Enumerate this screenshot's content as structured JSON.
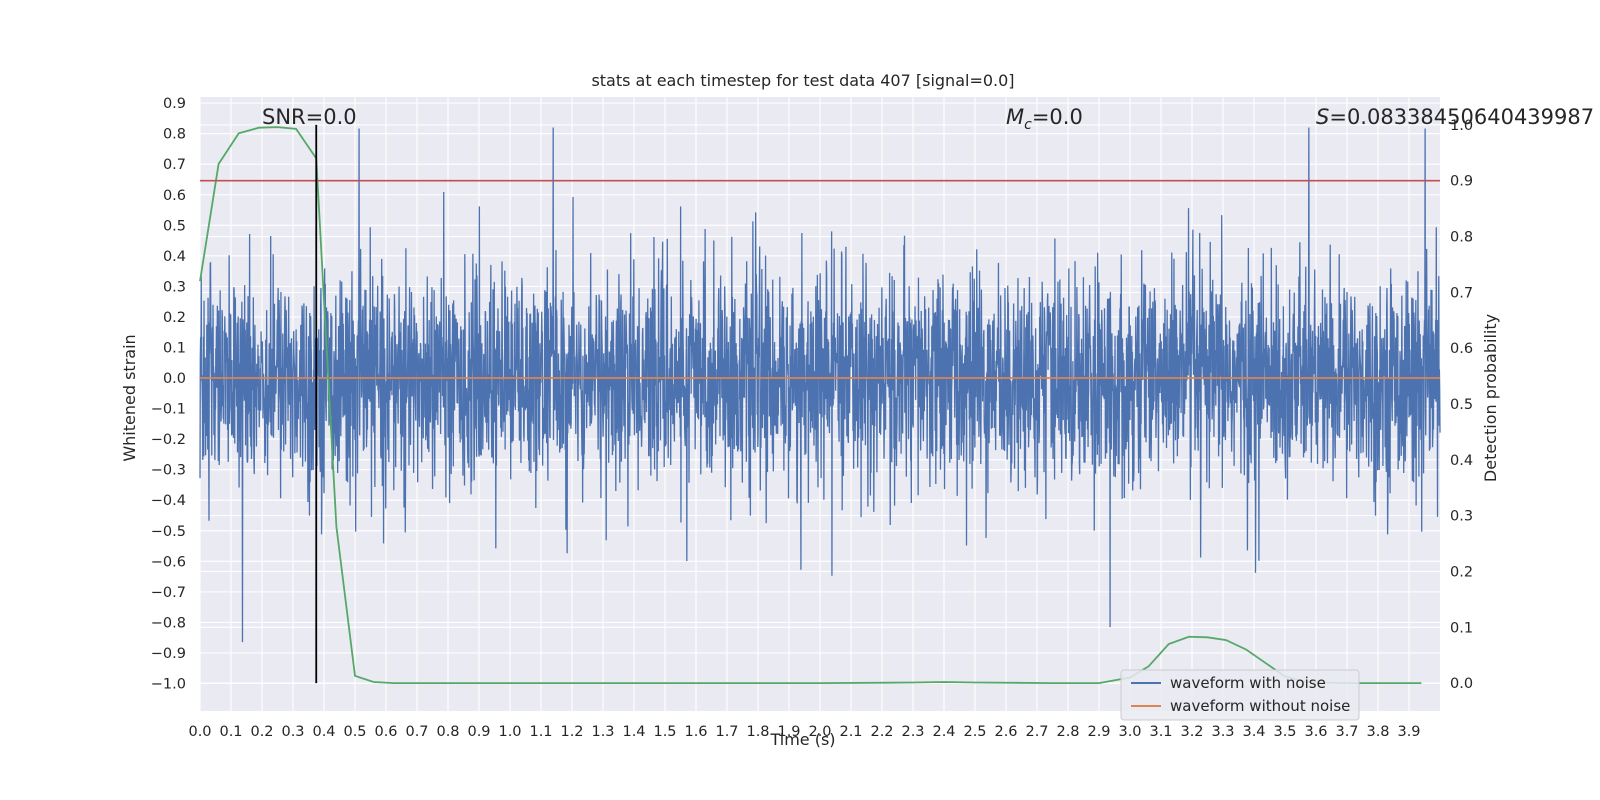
{
  "chart_data": {
    "type": "line",
    "title": "stats at each timestep for test data 407 [signal=0.0]",
    "xlabel": "Time (s)",
    "ylabel": "Whitened strain",
    "ylabel_right": "Detection probability",
    "xlim": [
      0.0,
      4.0
    ],
    "ylim": [
      -1.09,
      0.92
    ],
    "ylim_right": [
      -0.05,
      1.05
    ],
    "x_ticks": [
      "0.0",
      "0.1",
      "0.2",
      "0.3",
      "0.4",
      "0.5",
      "0.6",
      "0.7",
      "0.8",
      "0.9",
      "1.0",
      "1.1",
      "1.2",
      "1.3",
      "1.4",
      "1.5",
      "1.6",
      "1.7",
      "1.8",
      "1.9",
      "2.0",
      "2.1",
      "2.2",
      "2.3",
      "2.4",
      "2.5",
      "2.6",
      "2.7",
      "2.8",
      "2.9",
      "3.0",
      "3.1",
      "3.2",
      "3.3",
      "3.4",
      "3.5",
      "3.6",
      "3.7",
      "3.8",
      "3.9"
    ],
    "y_ticks": [
      "0.9",
      "0.8",
      "0.7",
      "0.6",
      "0.5",
      "0.4",
      "0.3",
      "0.2",
      "0.1",
      "0.0",
      "−0.1",
      "−0.2",
      "−0.3",
      "−0.4",
      "−0.5",
      "−0.6",
      "−0.7",
      "−0.8",
      "−0.9",
      "−1.0"
    ],
    "y_ticks_right": [
      "1.0",
      "0.9",
      "0.8",
      "0.7",
      "0.6",
      "0.5",
      "0.4",
      "0.3",
      "0.2",
      "0.1",
      "0.0"
    ],
    "annotations": {
      "snr": "SNR=0.0",
      "mc_symbol": "M",
      "mc_sub": "c",
      "mc_value": "=0.0",
      "s_symbol": "S",
      "s_value": "=0.08338450640439987"
    },
    "legend": {
      "placement": "lower-right",
      "entries": [
        "waveform with noise",
        "waveform without noise"
      ]
    },
    "grid": true,
    "series": [
      {
        "name": "waveform with noise",
        "kind": "noise",
        "n_samples": 4000,
        "typical_amplitude": [
          -0.3,
          0.3
        ],
        "peak_max": 0.82,
        "peak_min": -1.0,
        "color": "#4c72b0"
      },
      {
        "name": "waveform without noise",
        "x": [
          0.0,
          4.0
        ],
        "y": [
          0.0,
          0.0
        ],
        "color": "#dd8452"
      },
      {
        "axis": "right",
        "x": [
          0.0,
          0.06,
          0.125,
          0.19,
          0.25,
          0.31,
          0.375,
          0.44,
          0.5,
          0.56,
          0.625,
          0.69,
          0.75,
          0.81,
          0.875,
          0.94,
          1.0,
          1.5,
          2.0,
          2.3,
          2.4,
          2.5,
          2.75,
          2.9,
          3.0,
          3.06,
          3.125,
          3.19,
          3.25,
          3.31,
          3.375,
          3.44,
          3.5,
          3.56,
          3.625,
          3.69,
          3.75,
          3.81,
          3.875,
          3.94
        ],
        "y": [
          0.72,
          0.93,
          0.985,
          0.995,
          0.996,
          0.993,
          0.94,
          0.28,
          0.013,
          0.002,
          0.0,
          0.0,
          0.0,
          0.0,
          0.0,
          0.0,
          0.0,
          0.0,
          0.0,
          0.001,
          0.002,
          0.001,
          0.0,
          0.0,
          0.01,
          0.03,
          0.07,
          0.083,
          0.082,
          0.077,
          0.06,
          0.035,
          0.012,
          0.003,
          0.001,
          0.0,
          0.0,
          0.0,
          0.0,
          0.0
        ],
        "color": "#55a868"
      }
    ],
    "hlines": [
      {
        "axis": "right",
        "y": 0.9,
        "color": "#c44e52"
      }
    ],
    "vlines": [
      {
        "x": 0.375,
        "color": "#000000"
      }
    ]
  }
}
